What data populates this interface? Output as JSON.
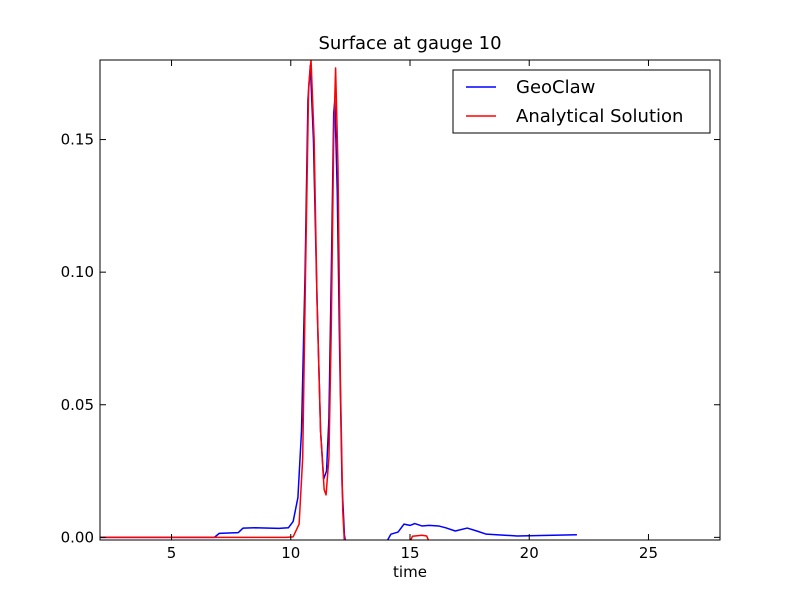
{
  "chart_data": {
    "type": "line",
    "title": "Surface at gauge 10",
    "xlabel": "time",
    "ylabel": "",
    "xlim": [
      2,
      28
    ],
    "ylim": [
      -0.001,
      0.18
    ],
    "xticks": [
      5,
      10,
      15,
      20,
      25
    ],
    "xtick_labels": [
      "5",
      "10",
      "15",
      "20",
      "25"
    ],
    "yticks": [
      0.0,
      0.05,
      0.1,
      0.15
    ],
    "ytick_labels": [
      "0.00",
      "0.05",
      "0.10",
      "0.15"
    ],
    "grid": false,
    "legend_position": "top-right",
    "series": [
      {
        "name": "GeoClaw",
        "color": "#0000ff",
        "points": [
          [
            2.0,
            0.0
          ],
          [
            6.8,
            0.0
          ],
          [
            7.0,
            0.0015
          ],
          [
            7.8,
            0.0018
          ],
          [
            8.0,
            0.0035
          ],
          [
            8.5,
            0.0036
          ],
          [
            9.5,
            0.0034
          ],
          [
            9.9,
            0.0036
          ],
          [
            10.1,
            0.006
          ],
          [
            10.3,
            0.015
          ],
          [
            10.45,
            0.04
          ],
          [
            10.6,
            0.1
          ],
          [
            10.72,
            0.165
          ],
          [
            10.82,
            0.178
          ],
          [
            10.95,
            0.15
          ],
          [
            11.1,
            0.09
          ],
          [
            11.25,
            0.04
          ],
          [
            11.38,
            0.022
          ],
          [
            11.5,
            0.025
          ],
          [
            11.6,
            0.045
          ],
          [
            11.7,
            0.1
          ],
          [
            11.8,
            0.16
          ],
          [
            11.85,
            0.165
          ],
          [
            11.95,
            0.13
          ],
          [
            12.05,
            0.07
          ],
          [
            12.15,
            0.02
          ],
          [
            12.25,
            0.001
          ],
          [
            12.3,
            -0.002
          ],
          [
            14.0,
            -0.002
          ],
          [
            14.2,
            0.0012
          ],
          [
            14.5,
            0.002
          ],
          [
            14.75,
            0.005
          ],
          [
            15.0,
            0.0045
          ],
          [
            15.2,
            0.0052
          ],
          [
            15.5,
            0.0043
          ],
          [
            15.8,
            0.0045
          ],
          [
            16.2,
            0.0043
          ],
          [
            16.5,
            0.0036
          ],
          [
            16.9,
            0.0024
          ],
          [
            17.4,
            0.0035
          ],
          [
            17.8,
            0.0024
          ],
          [
            18.2,
            0.0012
          ],
          [
            18.8,
            0.0009
          ],
          [
            19.5,
            0.0005
          ],
          [
            20.0,
            0.0006
          ],
          [
            21.0,
            0.0008
          ],
          [
            22.0,
            0.001
          ]
        ]
      },
      {
        "name": "Analytical Solution",
        "color": "#ff0000",
        "points": [
          [
            2.0,
            0.0
          ],
          [
            9.8,
            0.0
          ],
          [
            10.1,
            0.0002
          ],
          [
            10.35,
            0.005
          ],
          [
            10.5,
            0.03
          ],
          [
            10.62,
            0.1
          ],
          [
            10.75,
            0.17
          ],
          [
            10.85,
            0.18
          ],
          [
            10.98,
            0.15
          ],
          [
            11.1,
            0.09
          ],
          [
            11.25,
            0.04
          ],
          [
            11.4,
            0.018
          ],
          [
            11.48,
            0.016
          ],
          [
            11.6,
            0.03
          ],
          [
            11.7,
            0.08
          ],
          [
            11.8,
            0.15
          ],
          [
            11.88,
            0.177
          ],
          [
            11.98,
            0.14
          ],
          [
            12.08,
            0.06
          ],
          [
            12.18,
            0.01
          ],
          [
            12.25,
            -0.002
          ],
          [
            15.0,
            -0.002
          ],
          [
            15.1,
            0.0004
          ],
          [
            15.3,
            0.0006
          ],
          [
            15.5,
            0.0008
          ],
          [
            15.7,
            0.0005
          ],
          [
            15.82,
            -0.002
          ]
        ]
      }
    ]
  }
}
